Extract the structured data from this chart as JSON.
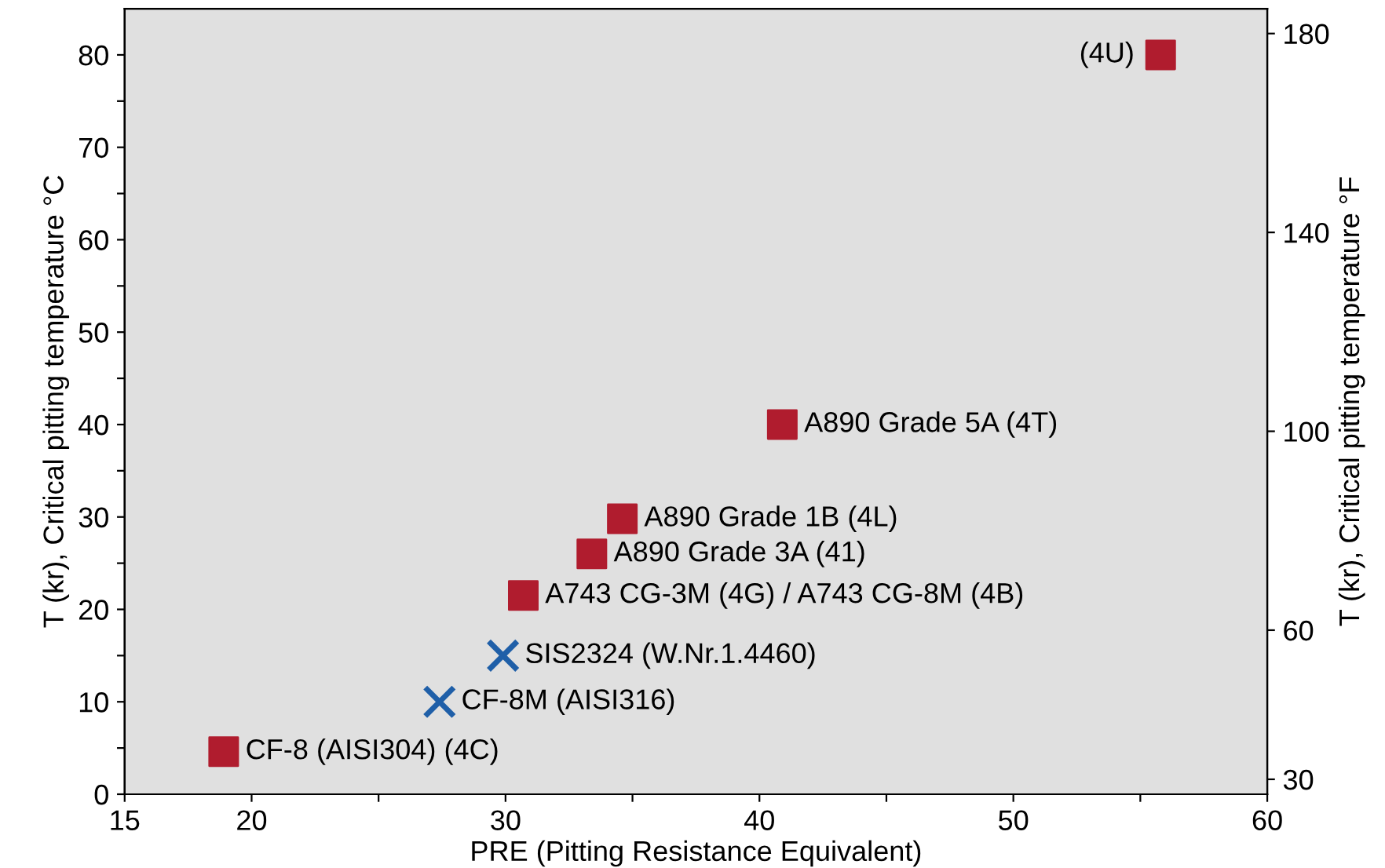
{
  "chart_data": {
    "type": "scatter",
    "xlabel": "PRE (Pitting Resistance Equivalent)",
    "ylabel": "T (kr), Critical pitting temperature °C",
    "y2label": "T (kr), Critical pitting temperature °F",
    "xlim": [
      15,
      60
    ],
    "xticks": [
      15,
      20,
      {
        "value": 25,
        "label": null
      },
      30,
      {
        "value": 35,
        "label": null
      },
      40,
      {
        "value": 45,
        "label": null
      },
      50,
      {
        "value": 55,
        "label": null
      },
      60
    ],
    "ylim": [
      0,
      85
    ],
    "yticks": [
      0,
      {
        "value": 5,
        "label": null
      },
      10,
      {
        "value": 15,
        "label": null
      },
      20,
      {
        "value": 25,
        "label": null
      },
      30,
      {
        "value": 35,
        "label": null
      },
      40,
      {
        "value": 45,
        "label": null
      },
      50,
      {
        "value": 55,
        "label": null
      },
      60,
      {
        "value": 65,
        "label": null
      },
      70,
      {
        "value": 75,
        "label": null
      },
      80
    ],
    "y2lim": [
      27,
      185
    ],
    "y2ticks": [
      30,
      60,
      100,
      140,
      180
    ],
    "grid": false,
    "series": [
      {
        "color": "#b01c2e",
        "marker": "square",
        "x": [
          18.9,
          30.7,
          33.4,
          34.6,
          40.9,
          55.8
        ],
        "values": [
          4.6,
          21.5,
          26,
          29.8,
          40,
          80
        ]
      },
      {
        "color": "#1f5fa8",
        "marker": "cross",
        "x": [
          27.4,
          29.9
        ],
        "values": [
          10,
          15
        ]
      }
    ],
    "annotations": [
      {
        "text": "CF-8 (AISI304) (4C)",
        "x": 18.9,
        "y": 4.6
      },
      {
        "text": "CF-8M (AISI316)",
        "x": 27.4,
        "y": 10
      },
      {
        "text": "SIS2324 (W.Nr.1.4460)",
        "x": 29.9,
        "y": 15
      },
      {
        "text": "A743 CG-3M (4G) / A743 CG-8M (4B)",
        "x": 30.7,
        "y": 21.5
      },
      {
        "text": "A890 Grade 3A (41)",
        "x": 33.4,
        "y": 26
      },
      {
        "text": "A890 Grade 1B (4L)",
        "x": 34.6,
        "y": 29.8
      },
      {
        "text": "A890 Grade 5A (4T)",
        "x": 40.9,
        "y": 40
      },
      {
        "text": "(4U)",
        "x": 55.8,
        "y": 80
      }
    ]
  }
}
